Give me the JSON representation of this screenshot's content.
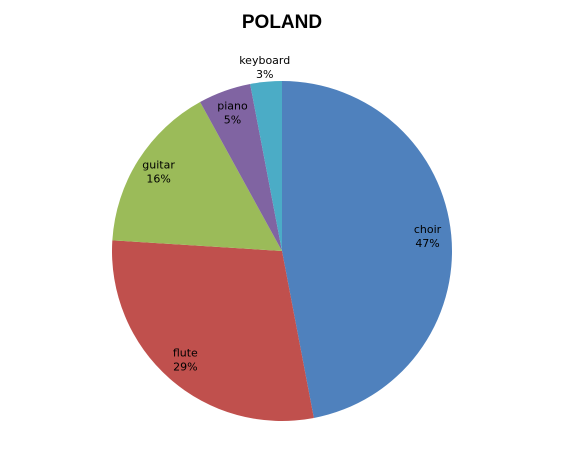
{
  "chart_data": {
    "type": "pie",
    "title": "POLAND",
    "categories": [
      "choir",
      "flute",
      "guitar",
      "piano",
      "keyboard"
    ],
    "values": [
      47,
      29,
      16,
      5,
      3
    ],
    "value_labels": [
      "47%",
      "29%",
      "16%",
      "5%",
      "3%"
    ],
    "colors": [
      "#4f81bd",
      "#c0504d",
      "#9bbb59",
      "#8064a2",
      "#4bacc6"
    ]
  }
}
